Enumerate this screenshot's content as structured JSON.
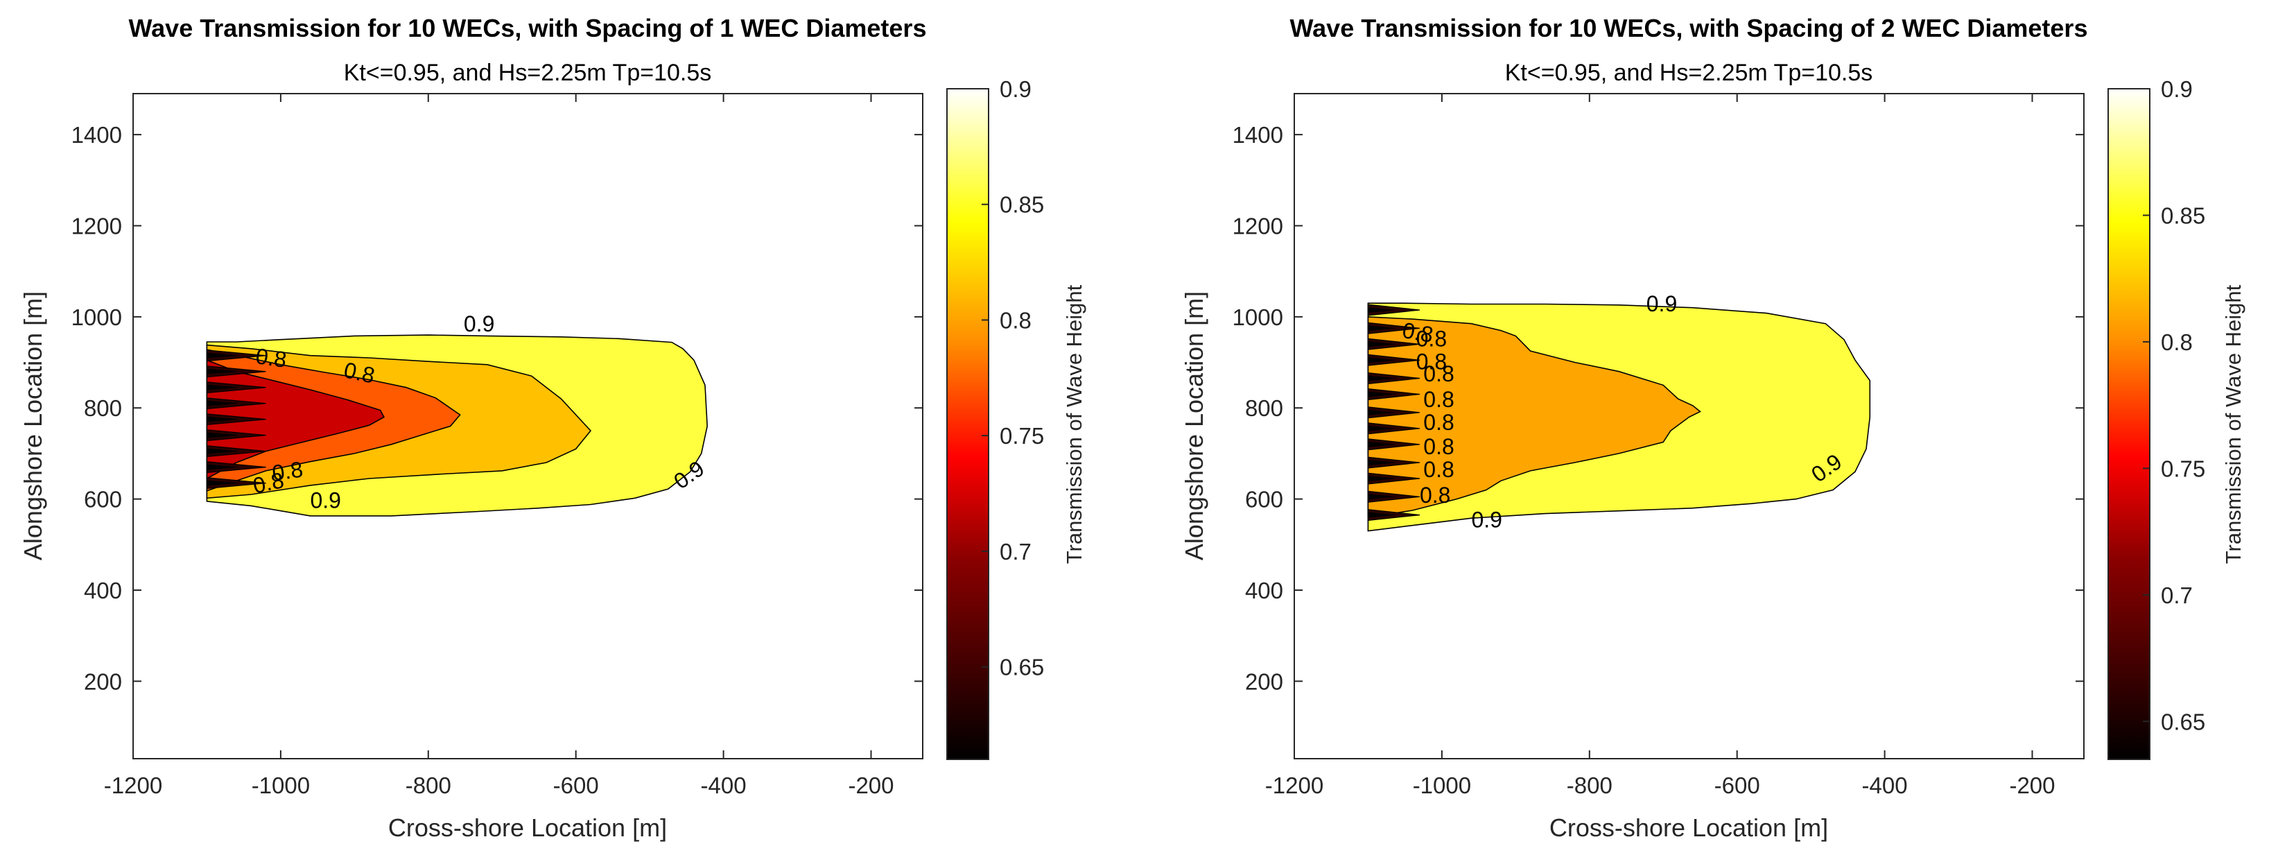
{
  "chart_data": [
    {
      "type": "contour",
      "title": "Wave Transmission for 10 WECs, with Spacing of 1 WEC Diameters",
      "subtitle": "Kt<=0.95, and Hs=2.25m Tp=10.5s",
      "xlabel": "Cross-shore Location [m]",
      "ylabel": "Alongshore Location [m]",
      "xlim": [
        -1200,
        -130
      ],
      "ylim": [
        30,
        1490
      ],
      "xticks": [
        -1200,
        -1000,
        -800,
        -600,
        -400,
        -200
      ],
      "yticks": [
        200,
        400,
        600,
        800,
        1000,
        1200,
        1400
      ],
      "xtick_labels": [
        "-1200",
        "-1000",
        "-800",
        "-600",
        "-400",
        "-200"
      ],
      "ytick_labels": [
        "200",
        "400",
        "600",
        "800",
        "1000",
        "1200",
        "1400"
      ],
      "colorbar": {
        "label": "Transmission of Wave Height",
        "min": 0.61,
        "max": 0.9,
        "ticks": [
          0.65,
          0.7,
          0.75,
          0.8,
          0.85,
          0.9
        ],
        "tick_labels": [
          "0.65",
          "0.7",
          "0.75",
          "0.8",
          "0.85",
          "0.9"
        ]
      },
      "levels": [
        {
          "level": 0.9,
          "fill": "#FFFF40",
          "outline": [
            [
              -1100,
              945
            ],
            [
              -1060,
              945
            ],
            [
              -1000,
              950
            ],
            [
              -900,
              958
            ],
            [
              -800,
              960
            ],
            [
              -720,
              958
            ],
            [
              -620,
              956
            ],
            [
              -540,
              952
            ],
            [
              -470,
              944
            ],
            [
              -455,
              930
            ],
            [
              -440,
              905
            ],
            [
              -425,
              850
            ],
            [
              -422,
              760
            ],
            [
              -430,
              700
            ],
            [
              -445,
              660
            ],
            [
              -475,
              622
            ],
            [
              -520,
              602
            ],
            [
              -580,
              588
            ],
            [
              -650,
              580
            ],
            [
              -740,
              572
            ],
            [
              -850,
              563
            ],
            [
              -960,
              563
            ],
            [
              -1040,
              585
            ],
            [
              -1100,
              595
            ]
          ]
        },
        {
          "level": 0.85,
          "fill": "#FFC000",
          "outline": [
            [
              -1100,
              938
            ],
            [
              -1040,
              930
            ],
            [
              -960,
              915
            ],
            [
              -880,
              910
            ],
            [
              -800,
              902
            ],
            [
              -720,
              895
            ],
            [
              -660,
              870
            ],
            [
              -620,
              820
            ],
            [
              -580,
              750
            ],
            [
              -600,
              710
            ],
            [
              -640,
              680
            ],
            [
              -700,
              662
            ],
            [
              -780,
              655
            ],
            [
              -880,
              645
            ],
            [
              -960,
              630
            ],
            [
              -1040,
              610
            ],
            [
              -1100,
              602
            ]
          ]
        },
        {
          "level": 0.8,
          "fill": "#FF5A00",
          "outline": [
            [
              -1100,
              928
            ],
            [
              -1050,
              912
            ],
            [
              -1000,
              895
            ],
            [
              -940,
              878
            ],
            [
              -880,
              862
            ],
            [
              -830,
              845
            ],
            [
              -790,
              822
            ],
            [
              -757,
              785
            ],
            [
              -770,
              760
            ],
            [
              -810,
              740
            ],
            [
              -850,
              720
            ],
            [
              -900,
              700
            ],
            [
              -960,
              682
            ],
            [
              -1020,
              662
            ],
            [
              -1060,
              640
            ],
            [
              -1100,
              618
            ]
          ]
        },
        {
          "level": 0.75,
          "fill": "#CC0000",
          "outline": [
            [
              -1100,
              905
            ],
            [
              -1060,
              880
            ],
            [
              -1010,
              860
            ],
            [
              -960,
              840
            ],
            [
              -910,
              818
            ],
            [
              -865,
              795
            ],
            [
              -860,
              780
            ],
            [
              -880,
              762
            ],
            [
              -920,
              745
            ],
            [
              -970,
              725
            ],
            [
              -1020,
              705
            ],
            [
              -1060,
              680
            ],
            [
              -1100,
              645
            ]
          ]
        }
      ],
      "spikes": {
        "x_start": -1100,
        "x_tip": -1020,
        "y_centers": [
          915,
          880,
          845,
          810,
          775,
          740,
          705,
          670,
          635
        ],
        "half_width": 12
      },
      "contour_labels": [
        {
          "text": "0.9",
          "x": -752,
          "y": 968,
          "angle": 0
        },
        {
          "text": "0.8",
          "x": -1035,
          "y": 898,
          "angle": 8
        },
        {
          "text": "0.8",
          "x": -916,
          "y": 868,
          "angle": 12
        },
        {
          "text": "0.8",
          "x": -1010,
          "y": 640,
          "angle": -8
        },
        {
          "text": "0.8",
          "x": -1035,
          "y": 612,
          "angle": -12
        },
        {
          "text": "0.9",
          "x": -960,
          "y": 580,
          "angle": 0
        },
        {
          "text": "0.9",
          "x": -458,
          "y": 620,
          "angle": -35
        }
      ]
    },
    {
      "type": "contour",
      "title": "Wave Transmission for 10 WECs, with Spacing of 2 WEC Diameters",
      "subtitle": "Kt<=0.95, and Hs=2.25m Tp=10.5s",
      "xlabel": "Cross-shore Location [m]",
      "ylabel": "Alongshore Location [m]",
      "xlim": [
        -1200,
        -130
      ],
      "ylim": [
        30,
        1490
      ],
      "xticks": [
        -1200,
        -1000,
        -800,
        -600,
        -400,
        -200
      ],
      "yticks": [
        200,
        400,
        600,
        800,
        1000,
        1200,
        1400
      ],
      "xtick_labels": [
        "-1200",
        "-1000",
        "-800",
        "-600",
        "-400",
        "-200"
      ],
      "ytick_labels": [
        "200",
        "400",
        "600",
        "800",
        "1000",
        "1200",
        "1400"
      ],
      "colorbar": {
        "label": "Transmission of Wave Height",
        "min": 0.635,
        "max": 0.9,
        "ticks": [
          0.65,
          0.7,
          0.75,
          0.8,
          0.85,
          0.9
        ],
        "tick_labels": [
          "0.65",
          "0.7",
          "0.75",
          "0.8",
          "0.85",
          "0.9"
        ]
      },
      "levels": [
        {
          "level": 0.9,
          "fill": "#FFFF40",
          "outline": [
            [
              -1100,
              1030
            ],
            [
              -1050,
              1030
            ],
            [
              -960,
              1028
            ],
            [
              -860,
              1028
            ],
            [
              -760,
              1026
            ],
            [
              -660,
              1020
            ],
            [
              -560,
              1008
            ],
            [
              -480,
              985
            ],
            [
              -455,
              950
            ],
            [
              -440,
              905
            ],
            [
              -420,
              860
            ],
            [
              -420,
              780
            ],
            [
              -425,
              710
            ],
            [
              -440,
              660
            ],
            [
              -470,
              620
            ],
            [
              -520,
              600
            ],
            [
              -580,
              590
            ],
            [
              -660,
              580
            ],
            [
              -760,
              574
            ],
            [
              -860,
              568
            ],
            [
              -960,
              558
            ],
            [
              -1040,
              542
            ],
            [
              -1100,
              530
            ]
          ]
        },
        {
          "level": 0.85,
          "fill": "#FFA500",
          "outline": [
            [
              -1100,
              1000
            ],
            [
              -1040,
              995
            ],
            [
              -960,
              985
            ],
            [
              -920,
              970
            ],
            [
              -900,
              958
            ],
            [
              -880,
              925
            ],
            [
              -820,
              900
            ],
            [
              -760,
              880
            ],
            [
              -700,
              850
            ],
            [
              -680,
              820
            ],
            [
              -660,
              805
            ],
            [
              -650,
              792
            ],
            [
              -665,
              780
            ],
            [
              -690,
              750
            ],
            [
              -700,
              725
            ],
            [
              -760,
              700
            ],
            [
              -820,
              680
            ],
            [
              -880,
              662
            ],
            [
              -920,
              640
            ],
            [
              -940,
              620
            ],
            [
              -980,
              600
            ],
            [
              -1040,
              575
            ],
            [
              -1100,
              560
            ]
          ]
        }
      ],
      "spikes": {
        "x_start": -1100,
        "x_tip": -1030,
        "y_centers": [
          1015,
          975,
          940,
          905,
          865,
          830,
          790,
          755,
          720,
          680,
          645,
          605,
          565
        ],
        "half_width": 12
      },
      "contour_labels": [
        {
          "text": "0.9",
          "x": -723,
          "y": 1012,
          "angle": 0
        },
        {
          "text": "0.8",
          "x": -1055,
          "y": 955,
          "angle": 10
        },
        {
          "text": "0.8",
          "x": -1035,
          "y": 935,
          "angle": 0
        },
        {
          "text": "0.8",
          "x": -1035,
          "y": 885,
          "angle": 0
        },
        {
          "text": "0.8",
          "x": -1025,
          "y": 858,
          "angle": 0
        },
        {
          "text": "0.8",
          "x": -1025,
          "y": 802,
          "angle": 0
        },
        {
          "text": "0.8",
          "x": -1025,
          "y": 752,
          "angle": 0
        },
        {
          "text": "0.8",
          "x": -1025,
          "y": 698,
          "angle": 0
        },
        {
          "text": "0.8",
          "x": -1025,
          "y": 648,
          "angle": 0
        },
        {
          "text": "0.8",
          "x": -1030,
          "y": 592,
          "angle": 0
        },
        {
          "text": "0.9",
          "x": -960,
          "y": 538,
          "angle": 0
        },
        {
          "text": "0.9",
          "x": -490,
          "y": 635,
          "angle": -35
        }
      ]
    }
  ]
}
